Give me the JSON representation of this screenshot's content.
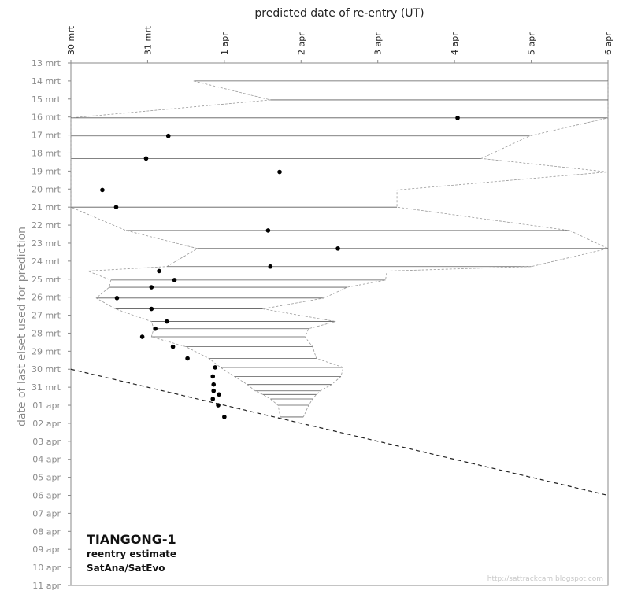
{
  "chart_data": {
    "type": "scatter",
    "title": "predicted date of re-entry  (UT)",
    "xlabel": "predicted date of re-entry  (UT)",
    "ylabel": "date of last elset used for prediction",
    "annotation": {
      "title": "TIANGONG-1",
      "line1": "reentry estimate",
      "line2": "SatAna/SatEvo",
      "credit": "http://sattrackcam.blogspot.com"
    },
    "x_range": [
      "30 mrt",
      "6 apr"
    ],
    "x_ticks": [
      "30 mrt",
      "31 mrt",
      "1 apr",
      "2 apr",
      "3 apr",
      "4 apr",
      "5 apr",
      "6 apr"
    ],
    "y_ticks": [
      "13 mrt",
      "14 mrt",
      "15 mrt",
      "16 mrt",
      "17 mrt",
      "18 mrt",
      "19 mrt",
      "20 mrt",
      "21 mrt",
      "22 mrt",
      "23 mrt",
      "24 mrt",
      "25 mrt",
      "26 mrt",
      "27 mrt",
      "28 mrt",
      "29 mrt",
      "30 mrt",
      "31 mrt",
      "01 apr",
      "02 apr",
      "03 apr",
      "04 apr",
      "05 apr",
      "06 apr",
      "07 apr",
      "08 apr",
      "09 apr",
      "10 apr",
      "11 apr"
    ],
    "x_unit": "days after 30 mrt 00:00 UT",
    "y_unit": "days after 13 mrt 00:00 UT",
    "predictions": [
      {
        "elset": 1.0,
        "low": 1.6,
        "high": 7.0,
        "nominal": null
      },
      {
        "elset": 2.05,
        "low": 2.6,
        "high": 7.0,
        "nominal": null
      },
      {
        "elset": 3.05,
        "low": -0.8,
        "high": 7.0,
        "nominal": 5.04
      },
      {
        "elset": 4.05,
        "low": -0.5,
        "high": 5.98,
        "nominal": 1.27
      },
      {
        "elset": 5.3,
        "low": -0.5,
        "high": 5.35,
        "nominal": 0.98
      },
      {
        "elset": 6.05,
        "low": -0.5,
        "high": 7.0,
        "nominal": 2.72
      },
      {
        "elset": 7.05,
        "low": -0.5,
        "high": 4.25,
        "nominal": 0.41
      },
      {
        "elset": 8.0,
        "low": -0.5,
        "high": 4.25,
        "nominal": 0.59
      },
      {
        "elset": 9.3,
        "low": 0.72,
        "high": 6.5,
        "nominal": 2.57
      },
      {
        "elset": 10.3,
        "low": 1.65,
        "high": 7.0,
        "nominal": 3.48
      },
      {
        "elset": 11.3,
        "low": 1.25,
        "high": 6.0,
        "nominal": 2.6
      },
      {
        "elset": 11.55,
        "low": 0.22,
        "high": 4.12,
        "nominal": 1.15
      },
      {
        "elset": 12.05,
        "low": 0.52,
        "high": 4.1,
        "nominal": 1.35
      },
      {
        "elset": 12.45,
        "low": 0.5,
        "high": 3.6,
        "nominal": 1.05
      },
      {
        "elset": 13.05,
        "low": 0.33,
        "high": 3.3,
        "nominal": 0.6
      },
      {
        "elset": 13.65,
        "low": 0.58,
        "high": 2.5,
        "nominal": 1.05
      },
      {
        "elset": 14.35,
        "low": 1.05,
        "high": 3.45,
        "nominal": 1.25
      },
      {
        "elset": 14.75,
        "low": 1.08,
        "high": 3.1,
        "nominal": 1.1
      },
      {
        "elset": 15.2,
        "low": 1.05,
        "high": 3.05,
        "nominal": 0.93
      },
      {
        "elset": 15.75,
        "low": 1.5,
        "high": 3.15,
        "nominal": 1.33
      },
      {
        "elset": 16.4,
        "low": 1.8,
        "high": 3.2,
        "nominal": 1.52
      },
      {
        "elset": 16.9,
        "low": 1.95,
        "high": 3.55,
        "nominal": 1.88
      },
      {
        "elset": 17.4,
        "low": 2.13,
        "high": 3.52,
        "nominal": 1.85
      },
      {
        "elset": 17.85,
        "low": 2.3,
        "high": 3.4,
        "nominal": 1.86
      },
      {
        "elset": 18.2,
        "low": 2.4,
        "high": 3.25,
        "nominal": 1.86
      },
      {
        "elset": 18.4,
        "low": 2.5,
        "high": 3.2,
        "nominal": 1.93
      },
      {
        "elset": 18.65,
        "low": 2.6,
        "high": 3.15,
        "nominal": 1.85
      },
      {
        "elset": 19.0,
        "low": 2.7,
        "high": 3.1,
        "nominal": 1.92
      },
      {
        "elset": 19.65,
        "low": 2.73,
        "high": 3.03,
        "nominal": 2.0
      }
    ],
    "reference_line": {
      "label": "diagonal: predicted date = elset date",
      "from": {
        "x": 0,
        "y": 17
      },
      "to": {
        "x": 7,
        "y": 24
      }
    },
    "grid": false,
    "legend": "none"
  }
}
